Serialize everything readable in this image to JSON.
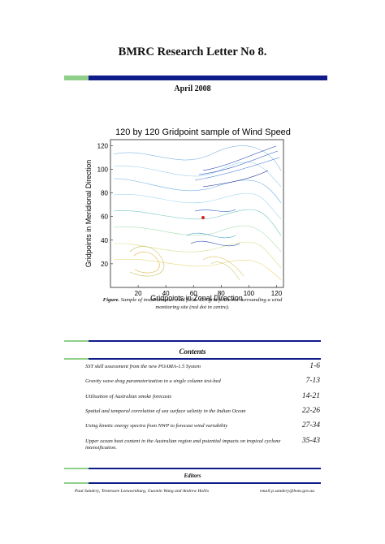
{
  "header": {
    "title": "BMRC Research Letter No 8.",
    "date": "April 2008"
  },
  "figure": {
    "caption_label": "Figure.",
    "caption_text": "Sample of instantaneous wind field: 120 grid point box surrounding a wind monitoring site (red dot in centre).",
    "plot_title": "120 by 120 Gridpoint sample of Wind Speed",
    "xlabel": "Gridpoints in Zonal Direction",
    "ylabel": "Gridpoints in Meridional Direction",
    "xticks": [
      "20",
      "40",
      "60",
      "80",
      "100",
      "120"
    ],
    "yticks": [
      "20",
      "40",
      "60",
      "80",
      "100",
      "120"
    ]
  },
  "contents": {
    "heading": "Contents",
    "items": [
      {
        "title": "SST skill assessment from the new POAMA-1.5 System",
        "pages": "1-6"
      },
      {
        "title": "Gravity wave drag parameterization in a single column test-bed",
        "pages": "7-13"
      },
      {
        "title": "Utilisation of Australian smoke forecasts",
        "pages": "14-21"
      },
      {
        "title": "Spatial and temporal correlation of sea surface salinity in the Indian Ocean",
        "pages": "22-26"
      },
      {
        "title": "Using kinetic energy spectra from NWP to forecast wind variability",
        "pages": "27-34"
      },
      {
        "title": "Upper ocean heat content in the Australian region and potential impacts on tropical cyclone intensification.",
        "pages": "35-43"
      }
    ]
  },
  "editors": {
    "heading": "Editors",
    "names": "Paul Sandery, Tennessee Leeuwenburg, Guomin Wang and Andrew Hollis",
    "email": "email:p.sandery@bom.gov.au"
  },
  "colors": {
    "accent_green": "#8fcf8a",
    "accent_blue": "#101b8a"
  }
}
